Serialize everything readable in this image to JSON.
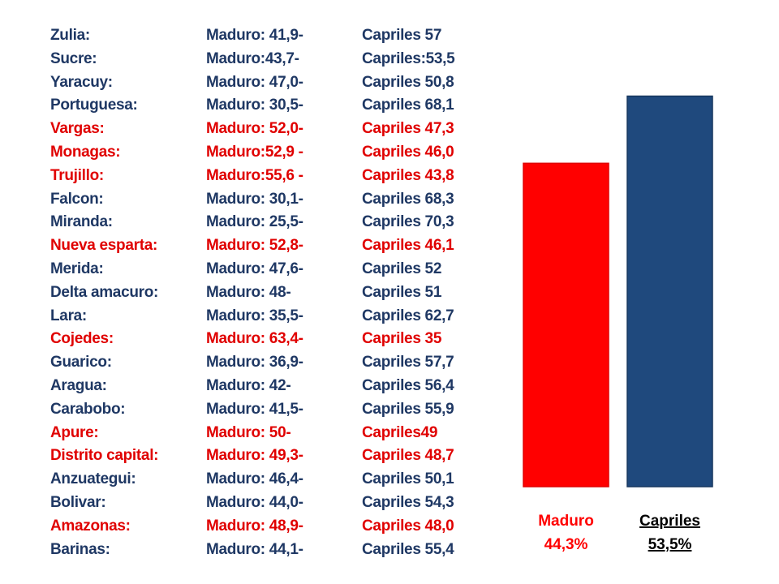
{
  "rows": [
    {
      "state": "Zulia:",
      "maduro": "Maduro: 41,9-",
      "capriles": "Capriles 57",
      "highlight": false
    },
    {
      "state": "Sucre:",
      "maduro": "Maduro:43,7-",
      "capriles": "Capriles:53,5",
      "highlight": false
    },
    {
      "state": "Yaracuy:",
      "maduro": "Maduro: 47,0-",
      "capriles": "Capriles 50,8",
      "highlight": false
    },
    {
      "state": "Portuguesa:",
      "maduro": "Maduro: 30,5-",
      "capriles": "Capriles 68,1",
      "highlight": false
    },
    {
      "state": "Vargas:",
      "maduro": "Maduro: 52,0-",
      "capriles": "Capriles 47,3",
      "highlight": true
    },
    {
      "state": "Monagas:",
      "maduro": "Maduro:52,9 -",
      "capriles": "Capriles 46,0",
      "highlight": true
    },
    {
      "state": "Trujillo:",
      "maduro": "Maduro:55,6 -",
      "capriles": "Capriles 43,8",
      "highlight": true
    },
    {
      "state": "Falcon:",
      "maduro": "Maduro: 30,1-",
      "capriles": "Capriles 68,3",
      "highlight": false
    },
    {
      "state": "Miranda:",
      "maduro": "Maduro: 25,5-",
      "capriles": "Capriles 70,3",
      "highlight": false
    },
    {
      "state": "Nueva esparta:",
      "maduro": "Maduro: 52,8-",
      "capriles": "Capriles 46,1",
      "highlight": true
    },
    {
      "state": "Merida:",
      "maduro": "Maduro: 47,6-",
      "capriles": "Capriles 52",
      "highlight": false
    },
    {
      "state": "Delta amacuro:",
      "maduro": "Maduro: 48-",
      "capriles": "Capriles 51",
      "highlight": false
    },
    {
      "state": "Lara:",
      "maduro": "Maduro: 35,5-",
      "capriles": "Capriles 62,7",
      "highlight": false
    },
    {
      "state": "Cojedes:",
      "maduro": "Maduro: 63,4-",
      "capriles": "Capriles 35",
      "highlight": true
    },
    {
      "state": "Guarico:",
      "maduro": "Maduro: 36,9-",
      "capriles": "Capriles 57,7",
      "highlight": false
    },
    {
      "state": "Aragua:",
      "maduro": "Maduro: 42-",
      "capriles": "Capriles 56,4",
      "highlight": false
    },
    {
      "state": "Carabobo:",
      "maduro": "Maduro: 41,5-",
      "capriles": "Capriles 55,9",
      "highlight": false
    },
    {
      "state": "Apure:",
      "maduro": "Maduro: 50-",
      "capriles": "Capriles49",
      "highlight": true
    },
    {
      "state": "Distrito capital:",
      "maduro": "Maduro: 49,3-",
      "capriles": "Capriles 48,7",
      "highlight": true
    },
    {
      "state": "Anzuategui:",
      "maduro": "Maduro: 46,4-",
      "capriles": "Capriles 50,1",
      "highlight": false
    },
    {
      "state": "Bolivar:",
      "maduro": "Maduro: 44,0-",
      "capriles": "Capriles 54,3",
      "highlight": false
    },
    {
      "state": "Amazonas:",
      "maduro": "Maduro: 48,9-",
      "capriles": "Capriles 48,0",
      "highlight": true
    },
    {
      "state": "Barinas:",
      "maduro": "Maduro: 44,1-",
      "capriles": "Capriles 55,4",
      "highlight": false
    }
  ],
  "colors": {
    "normal_text": "#1f3864",
    "highlight_text": "#e00000",
    "maduro_bar": "#ff0000",
    "capriles_bar": "#1f497d",
    "capriles_label": "#000000"
  },
  "chart_data": {
    "type": "bar",
    "categories": [
      "Maduro",
      "Capriles"
    ],
    "values": [
      44.3,
      53.5
    ],
    "bar_labels": [
      "Maduro\n44,3%",
      "Capriles\n53,5%"
    ],
    "title": "",
    "xlabel": "",
    "ylabel": "",
    "ylim": [
      0,
      60
    ],
    "grid": false
  }
}
